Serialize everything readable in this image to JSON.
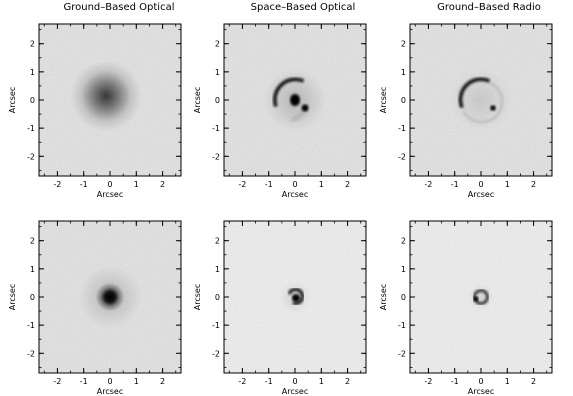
{
  "titles": [
    "Ground–Based Optical",
    "Space–Based Optical",
    "Ground–Based Radio"
  ],
  "xlabel": "Arcsec",
  "ylabel": "Arcsec",
  "ticks": {
    "x": [
      "-2",
      "-1",
      "0",
      "1",
      "2"
    ],
    "y": [
      "2",
      "1",
      "0",
      "-1",
      "-2"
    ]
  },
  "panels": [
    {
      "row": 1,
      "col": 1,
      "image": "diffuse-blurred-lens"
    },
    {
      "row": 1,
      "col": 2,
      "image": "einstein-arc-with-galaxy"
    },
    {
      "row": 1,
      "col": 3,
      "image": "radio-einstein-ring"
    },
    {
      "row": 2,
      "col": 1,
      "image": "compact-blurred-source"
    },
    {
      "row": 2,
      "col": 2,
      "image": "sharp-compact-source"
    },
    {
      "row": 2,
      "col": 3,
      "image": "small-radio-ring"
    }
  ]
}
